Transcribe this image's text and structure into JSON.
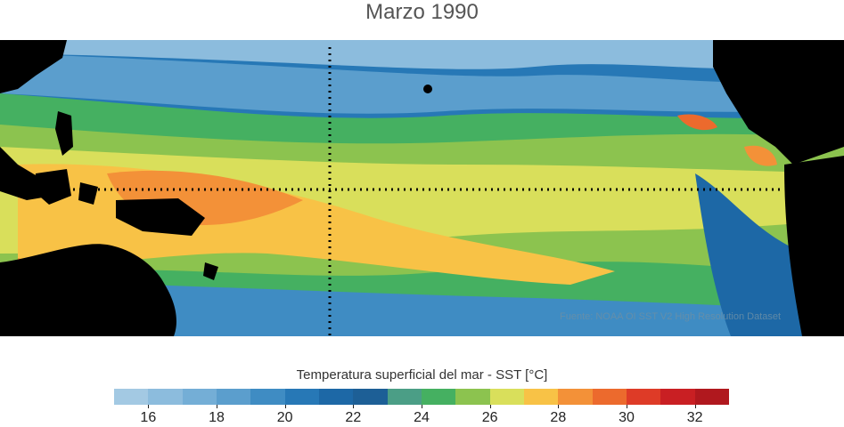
{
  "title": "Marzo 1990",
  "source_note": "Fuente: NOAA OI SST V2 High Resolution Dataset",
  "colorbar": {
    "label": "Temperatura superficial del mar - SST  [°C]",
    "colors": [
      "#a3c9e3",
      "#8cbcdd",
      "#74aed6",
      "#5b9ecd",
      "#3f8cc3",
      "#2778b6",
      "#1d68a6",
      "#1d5f96",
      "#4b9e86",
      "#45b061",
      "#8cc34f",
      "#d9df5b",
      "#f8c246",
      "#f39138",
      "#ec6a2d",
      "#de3b27",
      "#c91f23",
      "#b0181e"
    ],
    "tick_labels": [
      "16",
      "18",
      "20",
      "22",
      "24",
      "26",
      "28",
      "30",
      "32"
    ]
  },
  "layers": {
    "land": "#000000",
    "guide_lines": "dotted reference lines: equator and 180° meridian"
  }
}
